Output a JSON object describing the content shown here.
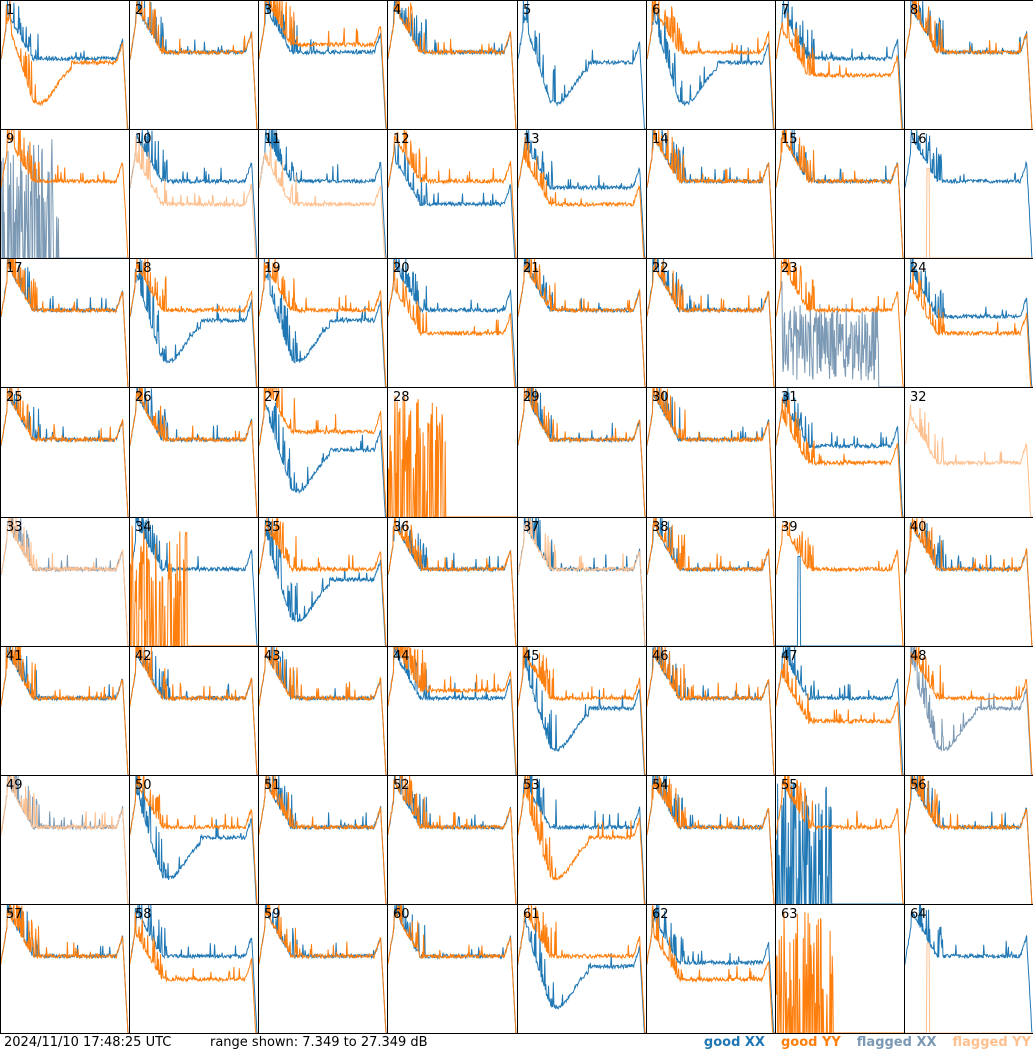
{
  "footer": {
    "timestamp": "2024/11/10 17:48:25 UTC",
    "range_text": "range shown: 7.349 to 27.349 dB"
  },
  "legend": [
    {
      "label": "good XX",
      "color": "#1f77b4"
    },
    {
      "label": "good YY",
      "color": "#ff7f0e"
    },
    {
      "label": "flagged XX",
      "color": "#7b99b4"
    },
    {
      "label": "flagged YY",
      "color": "#ffc08f"
    }
  ],
  "chart_data": {
    "type": "line",
    "grid": {
      "rows": 8,
      "cols": 8
    },
    "ylim_db": [
      7.349,
      27.349
    ],
    "x": "frequency channel (unlabeled)",
    "panels": [
      {
        "n": 1,
        "xx": "good",
        "yy": "good",
        "xx_shape": "mid",
        "yy_shape": "dip"
      },
      {
        "n": 2,
        "xx": "good",
        "yy": "good",
        "xx_shape": "normal",
        "yy_shape": "normal"
      },
      {
        "n": 3,
        "xx": "good",
        "yy": "good",
        "xx_shape": "normal",
        "yy_shape": "high"
      },
      {
        "n": 4,
        "xx": "good",
        "yy": "good",
        "xx_shape": "normal",
        "yy_shape": "normal"
      },
      {
        "n": 5,
        "xx": "good",
        "yy": "none",
        "xx_shape": "dip",
        "yy_shape": ""
      },
      {
        "n": 6,
        "xx": "good",
        "yy": "good",
        "xx_shape": "dip",
        "yy_shape": "normal"
      },
      {
        "n": 7,
        "xx": "good",
        "yy": "good",
        "xx_shape": "mid",
        "yy_shape": "low"
      },
      {
        "n": 8,
        "xx": "good",
        "yy": "good",
        "xx_shape": "normal",
        "yy_shape": "normal"
      },
      {
        "n": 9,
        "xx": "flagged",
        "yy": "good",
        "xx_shape": "spikes",
        "yy_shape": "normal"
      },
      {
        "n": 10,
        "xx": "good",
        "yy": "flagged",
        "xx_shape": "normal",
        "yy_shape": "low"
      },
      {
        "n": 11,
        "xx": "good",
        "yy": "flagged",
        "xx_shape": "normal",
        "yy_shape": "low"
      },
      {
        "n": 12,
        "xx": "good",
        "yy": "good",
        "xx_shape": "low",
        "yy_shape": "normal"
      },
      {
        "n": 13,
        "xx": "good",
        "yy": "good",
        "xx_shape": "mid",
        "yy_shape": "low"
      },
      {
        "n": 14,
        "xx": "good",
        "yy": "good",
        "xx_shape": "normal",
        "yy_shape": "normal"
      },
      {
        "n": 15,
        "xx": "good",
        "yy": "good",
        "xx_shape": "normal",
        "yy_shape": "normal"
      },
      {
        "n": 16,
        "xx": "good",
        "yy": "flagged",
        "xx_shape": "normal",
        "yy_shape": "spike"
      },
      {
        "n": 17,
        "xx": "good",
        "yy": "good",
        "xx_shape": "normal",
        "yy_shape": "normal"
      },
      {
        "n": 18,
        "xx": "good",
        "yy": "good",
        "xx_shape": "dip",
        "yy_shape": "normal"
      },
      {
        "n": 19,
        "xx": "good",
        "yy": "good",
        "xx_shape": "dip",
        "yy_shape": "normal"
      },
      {
        "n": 20,
        "xx": "good",
        "yy": "good",
        "xx_shape": "normal",
        "yy_shape": "low"
      },
      {
        "n": 21,
        "xx": "good",
        "yy": "good",
        "xx_shape": "normal",
        "yy_shape": "normal"
      },
      {
        "n": 22,
        "xx": "good",
        "yy": "good",
        "xx_shape": "normal",
        "yy_shape": "normal"
      },
      {
        "n": 23,
        "xx": "flagged",
        "yy": "good",
        "xx_shape": "noisy",
        "yy_shape": "normal"
      },
      {
        "n": 24,
        "xx": "good",
        "yy": "good",
        "xx_shape": "mid",
        "yy_shape": "low"
      },
      {
        "n": 25,
        "xx": "good",
        "yy": "good",
        "xx_shape": "normal",
        "yy_shape": "normal"
      },
      {
        "n": 26,
        "xx": "good",
        "yy": "good",
        "xx_shape": "normal",
        "yy_shape": "normal"
      },
      {
        "n": 27,
        "xx": "good",
        "yy": "good",
        "xx_shape": "dip",
        "yy_shape": "high"
      },
      {
        "n": 28,
        "xx": "none",
        "yy": "good",
        "xx_shape": "",
        "yy_shape": "spikes"
      },
      {
        "n": 29,
        "xx": "good",
        "yy": "good",
        "xx_shape": "normal",
        "yy_shape": "normal"
      },
      {
        "n": 30,
        "xx": "good",
        "yy": "good",
        "xx_shape": "normal",
        "yy_shape": "normal"
      },
      {
        "n": 31,
        "xx": "good",
        "yy": "good",
        "xx_shape": "mid",
        "yy_shape": "low"
      },
      {
        "n": 32,
        "xx": "none",
        "yy": "flagged",
        "xx_shape": "",
        "yy_shape": "low"
      },
      {
        "n": 33,
        "xx": "flagged",
        "yy": "flagged",
        "xx_shape": "normal",
        "yy_shape": "normal"
      },
      {
        "n": 34,
        "xx": "good",
        "yy": "good",
        "xx_shape": "normal",
        "yy_shape": "spikes"
      },
      {
        "n": 35,
        "xx": "good",
        "yy": "good",
        "xx_shape": "dip",
        "yy_shape": "normal"
      },
      {
        "n": 36,
        "xx": "good",
        "yy": "good",
        "xx_shape": "normal",
        "yy_shape": "normal"
      },
      {
        "n": 37,
        "xx": "good",
        "yy": "flagged",
        "xx_shape": "normal",
        "yy_shape": "normal"
      },
      {
        "n": 38,
        "xx": "good",
        "yy": "good",
        "xx_shape": "normal",
        "yy_shape": "normal"
      },
      {
        "n": 39,
        "xx": "good",
        "yy": "good",
        "xx_shape": "spike",
        "yy_shape": "normal"
      },
      {
        "n": 40,
        "xx": "good",
        "yy": "good",
        "xx_shape": "normal",
        "yy_shape": "normal"
      },
      {
        "n": 41,
        "xx": "good",
        "yy": "good",
        "xx_shape": "normal",
        "yy_shape": "normal"
      },
      {
        "n": 42,
        "xx": "good",
        "yy": "good",
        "xx_shape": "normal",
        "yy_shape": "normal"
      },
      {
        "n": 43,
        "xx": "good",
        "yy": "good",
        "xx_shape": "normal",
        "yy_shape": "normal"
      },
      {
        "n": 44,
        "xx": "good",
        "yy": "good",
        "xx_shape": "normal",
        "yy_shape": "high"
      },
      {
        "n": 45,
        "xx": "good",
        "yy": "good",
        "xx_shape": "dip",
        "yy_shape": "normal"
      },
      {
        "n": 46,
        "xx": "good",
        "yy": "good",
        "xx_shape": "normal",
        "yy_shape": "normal"
      },
      {
        "n": 47,
        "xx": "good",
        "yy": "good",
        "xx_shape": "normal",
        "yy_shape": "low"
      },
      {
        "n": 48,
        "xx": "flagged",
        "yy": "good",
        "xx_shape": "dip",
        "yy_shape": "normal"
      },
      {
        "n": 49,
        "xx": "flagged",
        "yy": "flagged",
        "xx_shape": "normal",
        "yy_shape": "normal"
      },
      {
        "n": 50,
        "xx": "good",
        "yy": "good",
        "xx_shape": "dip",
        "yy_shape": "normal"
      },
      {
        "n": 51,
        "xx": "good",
        "yy": "good",
        "xx_shape": "normal",
        "yy_shape": "normal"
      },
      {
        "n": 52,
        "xx": "good",
        "yy": "good",
        "xx_shape": "normal",
        "yy_shape": "normal"
      },
      {
        "n": 53,
        "xx": "good",
        "yy": "good",
        "xx_shape": "normal",
        "yy_shape": "dip"
      },
      {
        "n": 54,
        "xx": "good",
        "yy": "good",
        "xx_shape": "normal",
        "yy_shape": "normal"
      },
      {
        "n": 55,
        "xx": "good",
        "yy": "good",
        "xx_shape": "spikes",
        "yy_shape": "normal"
      },
      {
        "n": 56,
        "xx": "good",
        "yy": "good",
        "xx_shape": "normal",
        "yy_shape": "normal"
      },
      {
        "n": 57,
        "xx": "good",
        "yy": "good",
        "xx_shape": "normal",
        "yy_shape": "normal"
      },
      {
        "n": 58,
        "xx": "good",
        "yy": "good",
        "xx_shape": "normal",
        "yy_shape": "low"
      },
      {
        "n": 59,
        "xx": "good",
        "yy": "good",
        "xx_shape": "normal",
        "yy_shape": "normal"
      },
      {
        "n": 60,
        "xx": "good",
        "yy": "good",
        "xx_shape": "normal",
        "yy_shape": "normal"
      },
      {
        "n": 61,
        "xx": "good",
        "yy": "good",
        "xx_shape": "dip",
        "yy_shape": "normal"
      },
      {
        "n": 62,
        "xx": "good",
        "yy": "good",
        "xx_shape": "mid",
        "yy_shape": "low"
      },
      {
        "n": 63,
        "xx": "none",
        "yy": "good",
        "xx_shape": "",
        "yy_shape": "spikes"
      },
      {
        "n": 64,
        "xx": "good",
        "yy": "flagged",
        "xx_shape": "normal",
        "yy_shape": "spike"
      }
    ]
  }
}
